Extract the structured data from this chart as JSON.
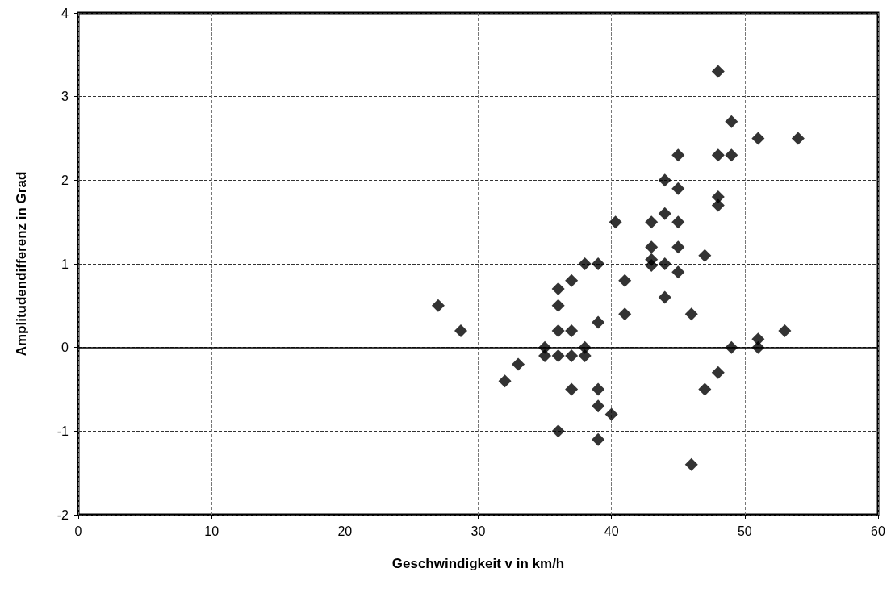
{
  "chart_data": {
    "type": "scatter",
    "xlabel": "Geschwindigkeit v in km/h",
    "ylabel": "Amplitudendifferenz in Grad",
    "xlim": [
      0,
      60
    ],
    "xticks": [
      0,
      10,
      20,
      30,
      40,
      50,
      60
    ],
    "ylim": [
      -2,
      4
    ],
    "yticks": [
      -2,
      -1,
      0,
      1,
      2,
      3,
      4
    ],
    "grid": true,
    "marker": "diamond",
    "ref_lines": [
      {
        "axis": "y",
        "value": 0,
        "color": "#000000",
        "line_style": "solid"
      }
    ],
    "series": [
      {
        "color": "#000000",
        "x": [
          27,
          28.7,
          32,
          33,
          35,
          35,
          36,
          36,
          36,
          36,
          36,
          37,
          37,
          37,
          37,
          38,
          38,
          38,
          39,
          39,
          39,
          39,
          39,
          40,
          40.3,
          41,
          41,
          43,
          43,
          43,
          43,
          44,
          44,
          44,
          44,
          45,
          45,
          45,
          45,
          45,
          46,
          46,
          47,
          47,
          48,
          48,
          48,
          48,
          48,
          49,
          49,
          49,
          51,
          51,
          51,
          53,
          54
        ],
        "values": [
          0.5,
          0.2,
          -0.4,
          -0.2,
          0,
          -0.1,
          0.7,
          0.5,
          0.2,
          -0.1,
          -1,
          0.8,
          0.2,
          -0.1,
          -0.5,
          1,
          0,
          -0.1,
          1,
          0.3,
          -0.5,
          -0.7,
          -1.1,
          -0.8,
          1.5,
          0.8,
          0.4,
          1.5,
          1.2,
          1.05,
          0.98,
          2,
          1.6,
          1,
          0.6,
          2.3,
          1.9,
          1.5,
          1.2,
          0.9,
          0.4,
          -1.4,
          1.1,
          -0.5,
          3.3,
          2.3,
          1.8,
          1.7,
          -0.3,
          2.7,
          2.3,
          0,
          2.5,
          0.1,
          0,
          0.2,
          2.5
        ]
      }
    ]
  }
}
